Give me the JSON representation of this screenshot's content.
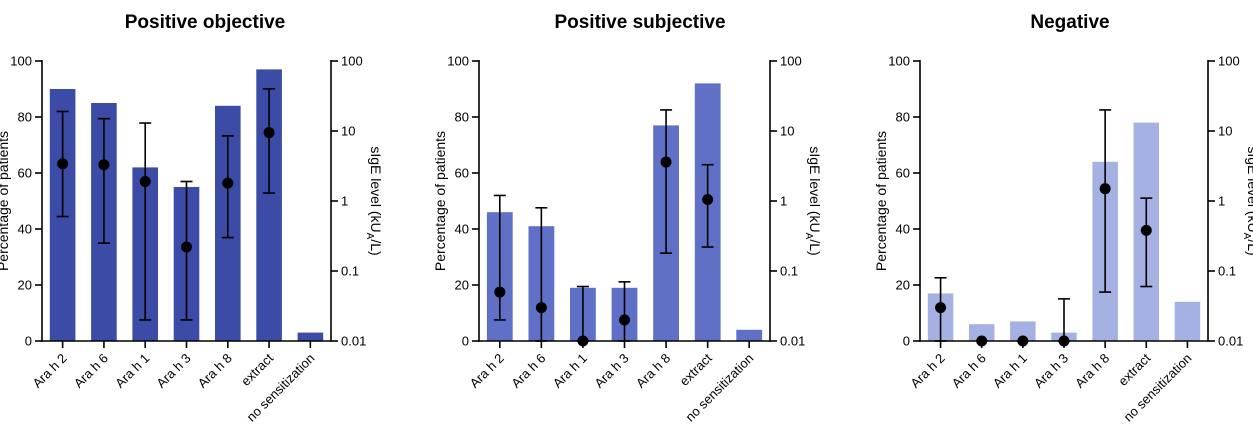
{
  "chart_data": [
    {
      "type": "bar",
      "title": "Positive objective",
      "categories": [
        "Ara h 2",
        "Ara h 6",
        "Ara h 1",
        "Ara h 3",
        "Ara h 8",
        "extract",
        "no sensitization"
      ],
      "bar_color": "#3B4BA6",
      "values": [
        90,
        85,
        62,
        55,
        84,
        97,
        3
      ],
      "ylabel": "Percentage of patients",
      "ylim": [
        0,
        100
      ],
      "yticks": [
        "0",
        "20",
        "40",
        "60",
        "80",
        "100"
      ],
      "ylabel_right": "sIgE level (kU",
      "ylabel_right_sub": "A",
      "ylabel_right_end": "/L)",
      "ylim_right": [
        0.01,
        100
      ],
      "right_scale": "log",
      "yticks_right": [
        "0.01",
        "0.1",
        "1",
        "10",
        "100"
      ],
      "sige_points": [
        {
          "category": "Ara h 2",
          "median": 3.4,
          "low": 0.6,
          "high": 19
        },
        {
          "category": "Ara h 6",
          "median": 3.3,
          "low": 0.25,
          "high": 15
        },
        {
          "category": "Ara h 1",
          "median": 1.9,
          "low": 0.02,
          "high": 13
        },
        {
          "category": "Ara h 3",
          "median": 0.22,
          "low": 0.02,
          "high": 1.9
        },
        {
          "category": "Ara h 8",
          "median": 1.8,
          "low": 0.3,
          "high": 8.5
        },
        {
          "category": "extract",
          "median": 9.5,
          "low": 1.3,
          "high": 40
        }
      ]
    },
    {
      "type": "bar",
      "title": "Positive subjective",
      "categories": [
        "Ara h 2",
        "Ara h 6",
        "Ara h 1",
        "Ara h 3",
        "Ara h 8",
        "extract",
        "no sensitization"
      ],
      "bar_color": "#6070C6",
      "values": [
        46,
        41,
        19,
        19,
        77,
        92,
        4
      ],
      "ylabel": "Percentage of patients",
      "ylim": [
        0,
        100
      ],
      "yticks": [
        "0",
        "20",
        "40",
        "60",
        "80",
        "100"
      ],
      "ylabel_right": "sIgE level (kU",
      "ylabel_right_sub": "A",
      "ylabel_right_end": "/L)",
      "ylim_right": [
        0.01,
        100
      ],
      "right_scale": "log",
      "yticks_right": [
        "0.01",
        "0.1",
        "1",
        "10",
        "100"
      ],
      "sige_points": [
        {
          "category": "Ara h 2",
          "median": 0.05,
          "low": 0.02,
          "high": 1.2
        },
        {
          "category": "Ara h 6",
          "median": 0.03,
          "low": 0.01,
          "high": 0.8
        },
        {
          "category": "Ara h 1",
          "median": 0.01,
          "low": 0.01,
          "high": 0.06
        },
        {
          "category": "Ara h 3",
          "median": 0.02,
          "low": 0.01,
          "high": 0.07
        },
        {
          "category": "Ara h 8",
          "median": 3.6,
          "low": 0.18,
          "high": 20
        },
        {
          "category": "extract",
          "median": 1.05,
          "low": 0.22,
          "high": 3.3
        }
      ]
    },
    {
      "type": "bar",
      "title": "Negative",
      "categories": [
        "Ara h 2",
        "Ara h 6",
        "Ara h 1",
        "Ara h 3",
        "Ara h 8",
        "extract",
        "no sensitization"
      ],
      "bar_color": "#A6B1E3",
      "values": [
        17,
        6,
        7,
        3,
        64,
        78,
        14
      ],
      "ylabel": "Percentage of patients",
      "ylim": [
        0,
        100
      ],
      "yticks": [
        "0",
        "20",
        "40",
        "60",
        "80",
        "100"
      ],
      "ylabel_right": "sIgE level (kU",
      "ylabel_right_sub": "A",
      "ylabel_right_end": "/L)",
      "ylim_right": [
        0.01,
        100
      ],
      "right_scale": "log",
      "yticks_right": [
        "0.01",
        "0.1",
        "1",
        "10",
        "100"
      ],
      "sige_points": [
        {
          "category": "Ara h 2",
          "median": 0.03,
          "low": 0.01,
          "high": 0.08
        },
        {
          "category": "Ara h 6",
          "median": 0.01,
          "low": 0.01,
          "high": 0.01
        },
        {
          "category": "Ara h 1",
          "median": 0.01,
          "low": 0.01,
          "high": 0.01
        },
        {
          "category": "Ara h 3",
          "median": 0.01,
          "low": 0.01,
          "high": 0.04
        },
        {
          "category": "Ara h 8",
          "median": 1.5,
          "low": 0.05,
          "high": 20
        },
        {
          "category": "extract",
          "median": 0.38,
          "low": 0.06,
          "high": 1.1
        }
      ]
    }
  ]
}
